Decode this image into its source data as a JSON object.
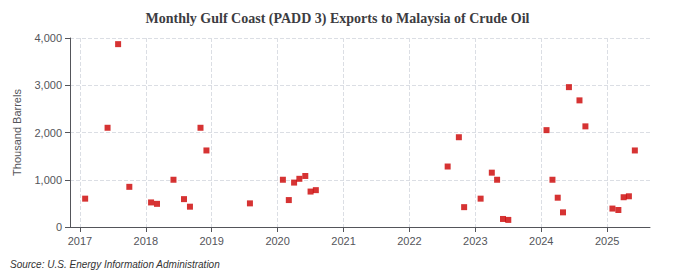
{
  "chart_data": {
    "type": "scatter",
    "title": "Monthly Gulf Coast (PADD 3) Exports to Malaysia of Crude Oil",
    "ylabel": "Thousand Barrels",
    "annotation": "Source: U.S. Energy Information Administration",
    "color": "#cc0000",
    "marker": "square",
    "grid": true,
    "xlim": [
      2016.85,
      2025.65
    ],
    "xticks": [
      2017,
      2018,
      2019,
      2020,
      2021,
      2022,
      2023,
      2024,
      2025
    ],
    "ylim": [
      0,
      4000
    ],
    "yticks": [
      0,
      {
        "value": 1000,
        "label": "1,000"
      },
      {
        "value": 2000,
        "label": "2,000"
      },
      {
        "value": 3000,
        "label": "3,000"
      },
      {
        "value": 4000,
        "label": "4,000"
      }
    ],
    "x": [
      2017.08,
      2017.42,
      2017.58,
      2017.75,
      2018.08,
      2018.17,
      2018.42,
      2018.58,
      2018.67,
      2018.83,
      2018.92,
      2019.58,
      2020.08,
      2020.17,
      2020.25,
      2020.33,
      2020.42,
      2020.5,
      2020.58,
      2022.58,
      2022.75,
      2022.83,
      2023.08,
      2023.25,
      2023.33,
      2023.42,
      2023.5,
      2024.08,
      2024.17,
      2024.25,
      2024.33,
      2024.42,
      2024.58,
      2024.67,
      2025.08,
      2025.17,
      2025.25,
      2025.33,
      2025.42
    ],
    "values": [
      600,
      2100,
      3870,
      850,
      520,
      490,
      1000,
      590,
      430,
      2100,
      1620,
      500,
      1000,
      570,
      940,
      1020,
      1080,
      750,
      780,
      1280,
      1900,
      420,
      600,
      1150,
      1000,
      170,
      150,
      2050,
      1000,
      620,
      310,
      2960,
      2680,
      2130,
      390,
      360,
      630,
      650,
      1620
    ]
  }
}
